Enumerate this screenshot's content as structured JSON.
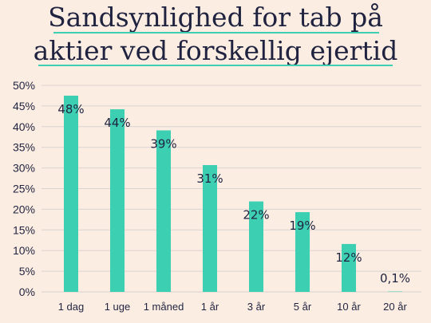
{
  "chart_data": {
    "type": "bar",
    "title_lines": [
      "Sandsynlighed for tab på",
      "aktier ved forskellig ejertid"
    ],
    "categories": [
      "1 dag",
      "1 uge",
      "1 måned",
      "1 år",
      "3 år",
      "5 år",
      "10 år",
      "20 år"
    ],
    "values": [
      47.5,
      44.2,
      39.1,
      30.7,
      21.9,
      19.3,
      11.6,
      0.1
    ],
    "data_labels": [
      "48%",
      "44%",
      "39%",
      "31%",
      "22%",
      "19%",
      "12%",
      "0,1%"
    ],
    "y_ticks": [
      0,
      5,
      10,
      15,
      20,
      25,
      30,
      35,
      40,
      45,
      50
    ],
    "y_tick_labels": [
      "0%",
      "5%",
      "10%",
      "15%",
      "20%",
      "25%",
      "30%",
      "35%",
      "40%",
      "45%",
      "50%"
    ],
    "ylim": [
      0,
      50
    ],
    "xlabel": "",
    "ylabel": "",
    "grid": true,
    "legend": "none"
  },
  "colors": {
    "background": "#fcede2",
    "bar": "#3ccfb2",
    "grid": "#d9d4d0",
    "text": "#1f2340",
    "title_underline": "#3ccfb2"
  }
}
